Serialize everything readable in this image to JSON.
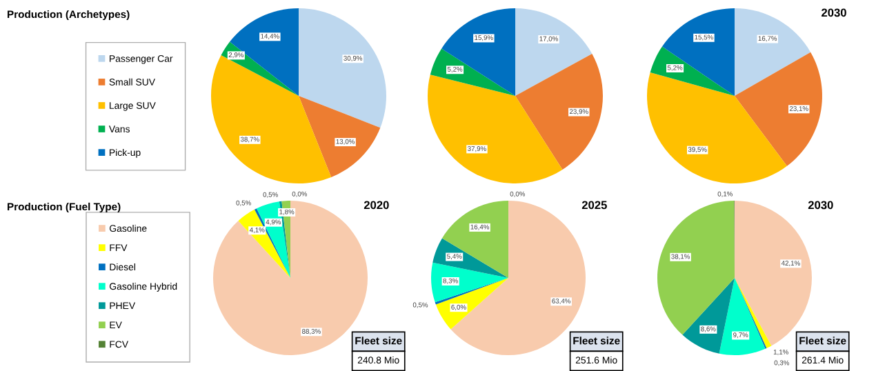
{
  "chart_data": [
    {
      "type": "pie",
      "title": "Production (Archetypes)",
      "legend": "left",
      "categories": [
        "Passenger Car",
        "Small SUV",
        "Large SUV",
        "Vans",
        "Pick-up"
      ],
      "values": [
        30.9,
        13.0,
        38.7,
        2.9,
        14.4
      ],
      "value_labels": [
        "30,9%",
        "13,0%",
        "38,7%",
        "2,9%",
        "14,4%"
      ],
      "colors": [
        "#bdd7ee",
        "#ed7d31",
        "#ffc000",
        "#00b050",
        "#0070c0"
      ]
    },
    {
      "type": "pie",
      "categories": [
        null,
        null,
        null,
        null,
        null
      ],
      "values": [
        17.0,
        23.9,
        37.9,
        5.2,
        15.9
      ],
      "value_labels": [
        "17,0%",
        "23,9%",
        "37,9%",
        "5,2%",
        "15,9%"
      ],
      "colors": [
        "#bdd7ee",
        "#ed7d31",
        "#ffc000",
        "#00b050",
        "#0070c0"
      ]
    },
    {
      "type": "pie",
      "subtitle": "2030",
      "categories": [
        null,
        null,
        null,
        null,
        null
      ],
      "values": [
        16.7,
        23.1,
        39.5,
        5.2,
        15.5
      ],
      "value_labels": [
        "16,7%",
        "23,1%",
        "39,5%",
        "5,2%",
        "15,5%"
      ],
      "colors": [
        "#bdd7ee",
        "#ed7d31",
        "#ffc000",
        "#00b050",
        "#0070c0"
      ]
    },
    {
      "type": "pie",
      "title": "Production (Fuel Type)",
      "subtitle": "2020",
      "legend": "left",
      "categories": [
        "Gasoline",
        "FFV",
        "Diesel",
        "Gasoline Hybrid",
        "PHEV",
        "EV",
        "FCV"
      ],
      "values": [
        88.3,
        4.1,
        0.5,
        4.9,
        0.5,
        1.8,
        0.0
      ],
      "value_labels": [
        "88,3%",
        "4,1%",
        "0,5%",
        "4,9%",
        "0,5%",
        "1,8%",
        "0,0%"
      ],
      "colors": [
        "#f8cbad",
        "#ffff00",
        "#0070c0",
        "#00ffcc",
        "#009999",
        "#92d050",
        "#548235"
      ],
      "annotations": [
        "Fleet size",
        "240.8 Mio"
      ]
    },
    {
      "type": "pie",
      "subtitle": "2025",
      "categories": [
        null,
        null,
        null,
        null,
        null,
        null,
        null
      ],
      "values": [
        63.4,
        6.0,
        0.5,
        8.3,
        5.4,
        16.4,
        0.0
      ],
      "value_labels": [
        "63,4%",
        "6,0%",
        "0,5%",
        "8,3%",
        "5,4%",
        "16,4%",
        "0,0%"
      ],
      "colors": [
        "#f8cbad",
        "#ffff00",
        "#0070c0",
        "#00ffcc",
        "#009999",
        "#92d050",
        "#548235"
      ],
      "annotations": [
        "Fleet size",
        "251.6 Mio"
      ]
    },
    {
      "type": "pie",
      "subtitle": "2030",
      "categories": [
        null,
        null,
        null,
        null,
        null,
        null,
        null
      ],
      "values": [
        42.1,
        1.1,
        0.3,
        9.7,
        8.6,
        38.1,
        0.1
      ],
      "value_labels": [
        "42,1%",
        "1,1%",
        "0,3%",
        "9,7%",
        "8,6%",
        "38,1%",
        "0,1%"
      ],
      "colors": [
        "#f8cbad",
        "#ffff00",
        "#0070c0",
        "#00ffcc",
        "#009999",
        "#92d050",
        "#548235"
      ],
      "annotations": [
        "Fleet size",
        "261.4 Mio"
      ]
    }
  ]
}
